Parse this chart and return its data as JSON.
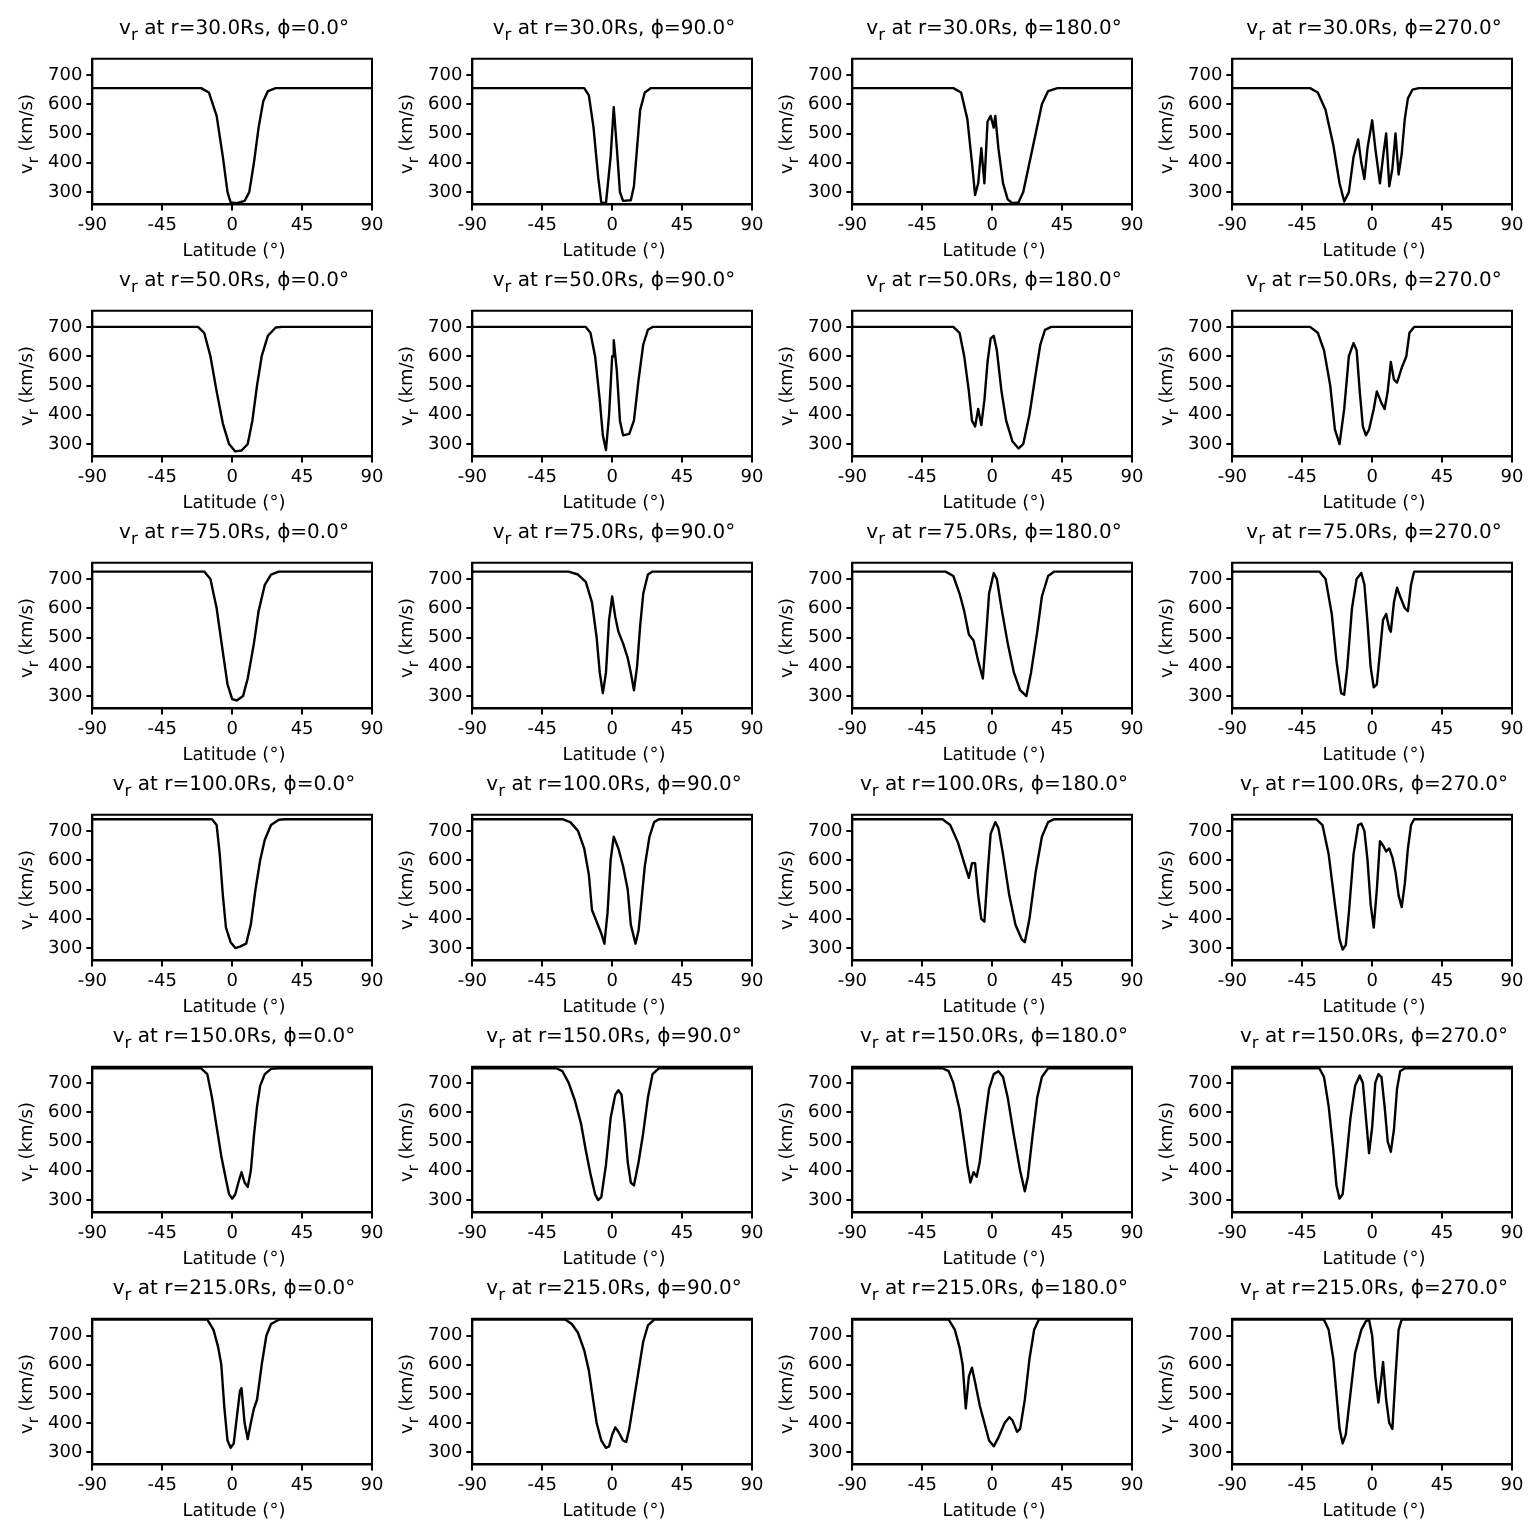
{
  "chart_data": [
    {
      "type": "line",
      "title": "v$_{r}$ at r=30.0Rs, ϕ=0.0°",
      "xlabel": "Latitude (°)",
      "ylabel": "v$_{r}$ (km/s)",
      "xlim": [
        -90,
        90
      ],
      "xticks": [
        -90,
        -45,
        0,
        45,
        90
      ],
      "ylim": [
        258,
        755
      ],
      "yticks": [
        300,
        400,
        500,
        600,
        700
      ],
      "grid": false,
      "legend": false,
      "marker": "none",
      "series": [
        {
          "color": "#000000",
          "x": [
            -90,
            -20,
            -15,
            -10,
            -6,
            -3,
            -1,
            3,
            8,
            11,
            14,
            17,
            20,
            23,
            28,
            90
          ],
          "values": [
            655,
            655,
            640,
            560,
            420,
            300,
            265,
            262,
            270,
            300,
            400,
            520,
            610,
            645,
            655,
            655
          ]
        }
      ]
    },
    {
      "type": "line",
      "title": "v$_{r}$ at r=30.0Rs, ϕ=90.0°",
      "xlabel": "Latitude (°)",
      "ylabel": "v$_{r}$ (km/s)",
      "xlim": [
        -90,
        90
      ],
      "xticks": [
        -90,
        -45,
        0,
        45,
        90
      ],
      "ylim": [
        258,
        755
      ],
      "yticks": [
        300,
        400,
        500,
        600,
        700
      ],
      "grid": false,
      "legend": false,
      "marker": "none",
      "series": [
        {
          "color": "#000000",
          "x": [
            -90,
            -18,
            -15,
            -12,
            -9,
            -7,
            -4,
            -1,
            1,
            3,
            5,
            7,
            12,
            14,
            16,
            18,
            21,
            25,
            90
          ],
          "values": [
            655,
            655,
            630,
            520,
            350,
            265,
            262,
            420,
            590,
            450,
            300,
            270,
            272,
            320,
            450,
            580,
            640,
            655,
            655
          ]
        }
      ]
    },
    {
      "type": "line",
      "title": "v$_{r}$ at r=30.0Rs, ϕ=180.0°",
      "xlabel": "Latitude (°)",
      "ylabel": "v$_{r}$ (km/s)",
      "xlim": [
        -90,
        90
      ],
      "xticks": [
        -90,
        -45,
        0,
        45,
        90
      ],
      "ylim": [
        258,
        755
      ],
      "yticks": [
        300,
        400,
        500,
        600,
        700
      ],
      "grid": false,
      "legend": false,
      "marker": "none",
      "series": [
        {
          "color": "#000000",
          "x": [
            -90,
            -25,
            -20,
            -16,
            -13,
            -11,
            -9,
            -7,
            -5,
            -3,
            -1,
            1,
            2,
            4,
            7,
            10,
            13,
            17,
            20,
            24,
            28,
            32,
            36,
            42,
            90
          ],
          "values": [
            655,
            655,
            640,
            550,
            400,
            290,
            330,
            450,
            330,
            540,
            560,
            520,
            560,
            450,
            330,
            275,
            262,
            265,
            300,
            400,
            500,
            600,
            645,
            655,
            655
          ]
        }
      ]
    },
    {
      "type": "line",
      "title": "v$_{r}$ at r=30.0Rs, ϕ=270.0°",
      "xlabel": "Latitude (°)",
      "ylabel": "v$_{r}$ (km/s)",
      "xlim": [
        -90,
        90
      ],
      "xticks": [
        -90,
        -45,
        0,
        45,
        90
      ],
      "ylim": [
        258,
        755
      ],
      "yticks": [
        300,
        400,
        500,
        600,
        700
      ],
      "grid": false,
      "legend": false,
      "marker": "none",
      "series": [
        {
          "color": "#000000",
          "x": [
            -90,
            -40,
            -35,
            -30,
            -25,
            -21,
            -18,
            -15,
            -12,
            -9,
            -7,
            -5,
            -3,
            0,
            2,
            5,
            7,
            9,
            11,
            13,
            15,
            17,
            19,
            21,
            23,
            26,
            30,
            90
          ],
          "values": [
            655,
            655,
            640,
            580,
            460,
            330,
            268,
            300,
            420,
            480,
            400,
            345,
            450,
            545,
            450,
            330,
            420,
            500,
            320,
            380,
            500,
            360,
            430,
            550,
            620,
            650,
            655,
            655
          ]
        }
      ]
    },
    {
      "type": "line",
      "title": "v$_{r}$ at r=50.0Rs, ϕ=0.0°",
      "xlabel": "Latitude (°)",
      "ylabel": "v$_{r}$ (km/s)",
      "xlim": [
        -90,
        90
      ],
      "xticks": [
        -90,
        -45,
        0,
        45,
        90
      ],
      "ylim": [
        258,
        755
      ],
      "yticks": [
        300,
        400,
        500,
        600,
        700
      ],
      "grid": false,
      "legend": false,
      "marker": "none",
      "series": [
        {
          "color": "#000000",
          "x": [
            -90,
            -22,
            -18,
            -14,
            -10,
            -6,
            -2,
            2,
            6,
            10,
            13,
            16,
            19,
            23,
            28,
            32,
            90
          ],
          "values": [
            700,
            700,
            680,
            600,
            480,
            370,
            300,
            275,
            278,
            300,
            380,
            500,
            600,
            670,
            698,
            700,
            700
          ]
        }
      ]
    },
    {
      "type": "line",
      "title": "v$_{r}$ at r=50.0Rs, ϕ=90.0°",
      "xlabel": "Latitude (°)",
      "ylabel": "v$_{r}$ (km/s)",
      "xlim": [
        -90,
        90
      ],
      "xticks": [
        -90,
        -45,
        0,
        45,
        90
      ],
      "ylim": [
        258,
        755
      ],
      "yticks": [
        300,
        400,
        500,
        600,
        700
      ],
      "grid": false,
      "legend": false,
      "marker": "none",
      "series": [
        {
          "color": "#000000",
          "x": [
            -90,
            -17,
            -14,
            -11,
            -8,
            -6,
            -4,
            -2,
            0,
            1,
            3,
            5,
            7,
            11,
            14,
            17,
            20,
            23,
            26,
            90
          ],
          "values": [
            700,
            700,
            680,
            600,
            450,
            330,
            280,
            400,
            600,
            655,
            550,
            380,
            330,
            335,
            380,
            520,
            640,
            690,
            700,
            700
          ]
        }
      ]
    },
    {
      "type": "line",
      "title": "v$_{r}$ at r=50.0Rs, ϕ=180.0°",
      "xlabel": "Latitude (°)",
      "ylabel": "v$_{r}$ (km/s)",
      "xlim": [
        -90,
        90
      ],
      "xticks": [
        -90,
        -45,
        0,
        45,
        90
      ],
      "ylim": [
        258,
        755
      ],
      "yticks": [
        300,
        400,
        500,
        600,
        700
      ],
      "grid": false,
      "legend": false,
      "marker": "none",
      "series": [
        {
          "color": "#000000",
          "x": [
            -90,
            -25,
            -21,
            -18,
            -15,
            -13,
            -11,
            -9,
            -7,
            -5,
            -3,
            -1,
            1,
            3,
            6,
            9,
            13,
            17,
            20,
            24,
            28,
            31,
            34,
            38,
            90
          ],
          "values": [
            700,
            700,
            680,
            600,
            480,
            380,
            360,
            420,
            365,
            450,
            580,
            660,
            670,
            620,
            480,
            380,
            310,
            285,
            300,
            400,
            540,
            640,
            690,
            700,
            700
          ]
        }
      ]
    },
    {
      "type": "line",
      "title": "v$_{r}$ at r=50.0Rs, ϕ=270.0°",
      "xlabel": "Latitude (°)",
      "ylabel": "v$_{r}$ (km/s)",
      "xlim": [
        -90,
        90
      ],
      "xticks": [
        -90,
        -45,
        0,
        45,
        90
      ],
      "ylim": [
        258,
        755
      ],
      "yticks": [
        300,
        400,
        500,
        600,
        700
      ],
      "grid": false,
      "legend": false,
      "marker": "none",
      "series": [
        {
          "color": "#000000",
          "x": [
            -90,
            -40,
            -35,
            -31,
            -27,
            -24,
            -21,
            -18,
            -15,
            -12,
            -10,
            -8,
            -6,
            -4,
            -2,
            1,
            3,
            6,
            8,
            10,
            12,
            14,
            16,
            19,
            22,
            24,
            27,
            90
          ],
          "values": [
            700,
            700,
            680,
            620,
            500,
            350,
            300,
            420,
            600,
            645,
            620,
            480,
            360,
            330,
            350,
            420,
            480,
            440,
            420,
            480,
            580,
            520,
            510,
            560,
            600,
            680,
            700,
            700
          ]
        }
      ]
    },
    {
      "type": "line",
      "title": "v$_{r}$ at r=75.0Rs, ϕ=0.0°",
      "xlabel": "Latitude (°)",
      "ylabel": "v$_{r}$ (km/s)",
      "xlim": [
        -90,
        90
      ],
      "xticks": [
        -90,
        -45,
        0,
        45,
        90
      ],
      "ylim": [
        258,
        755
      ],
      "yticks": [
        300,
        400,
        500,
        600,
        700
      ],
      "grid": false,
      "legend": false,
      "marker": "none",
      "series": [
        {
          "color": "#000000",
          "x": [
            -90,
            -18,
            -14,
            -10,
            -6,
            -3,
            0,
            3,
            7,
            10,
            14,
            17,
            21,
            25,
            30,
            90
          ],
          "values": [
            725,
            725,
            700,
            600,
            450,
            340,
            290,
            285,
            300,
            360,
            480,
            590,
            680,
            715,
            725,
            725
          ]
        }
      ]
    },
    {
      "type": "line",
      "title": "v$_{r}$ at r=75.0Rs, ϕ=90.0°",
      "xlabel": "Latitude (°)",
      "ylabel": "v$_{r}$ (km/s)",
      "xlim": [
        -90,
        90
      ],
      "xticks": [
        -90,
        -45,
        0,
        45,
        90
      ],
      "ylim": [
        258,
        755
      ],
      "yticks": [
        300,
        400,
        500,
        600,
        700
      ],
      "grid": false,
      "legend": false,
      "marker": "none",
      "series": [
        {
          "color": "#000000",
          "x": [
            -90,
            -28,
            -22,
            -17,
            -13,
            -10,
            -8,
            -6,
            -4,
            -2,
            0,
            2,
            4,
            7,
            10,
            12,
            14,
            16,
            18,
            20,
            23,
            26,
            90
          ],
          "values": [
            725,
            725,
            715,
            690,
            620,
            500,
            380,
            310,
            380,
            560,
            640,
            570,
            520,
            480,
            430,
            380,
            320,
            400,
            540,
            650,
            715,
            725,
            725
          ]
        }
      ]
    },
    {
      "type": "line",
      "title": "v$_{r}$ at r=75.0Rs, ϕ=180.0°",
      "xlabel": "Latitude (°)",
      "ylabel": "v$_{r}$ (km/s)",
      "xlim": [
        -90,
        90
      ],
      "xticks": [
        -90,
        -45,
        0,
        45,
        90
      ],
      "ylim": [
        258,
        755
      ],
      "yticks": [
        300,
        400,
        500,
        600,
        700
      ],
      "grid": false,
      "legend": false,
      "marker": "none",
      "series": [
        {
          "color": "#000000",
          "x": [
            -90,
            -30,
            -25,
            -21,
            -18,
            -15,
            -12,
            -9,
            -6,
            -4,
            -2,
            1,
            3,
            6,
            10,
            14,
            18,
            22,
            25,
            29,
            32,
            36,
            40,
            90
          ],
          "values": [
            725,
            725,
            710,
            650,
            590,
            510,
            490,
            420,
            360,
            500,
            650,
            720,
            700,
            600,
            480,
            380,
            320,
            300,
            380,
            520,
            640,
            710,
            725,
            725
          ]
        }
      ]
    },
    {
      "type": "line",
      "title": "v$_{r}$ at r=75.0Rs, ϕ=270.0°",
      "xlabel": "Latitude (°)",
      "ylabel": "v$_{r}$ (km/s)",
      "xlim": [
        -90,
        90
      ],
      "xticks": [
        -90,
        -45,
        0,
        45,
        90
      ],
      "ylim": [
        258,
        755
      ],
      "yticks": [
        300,
        400,
        500,
        600,
        700
      ],
      "grid": false,
      "legend": false,
      "marker": "none",
      "series": [
        {
          "color": "#000000",
          "x": [
            -90,
            -34,
            -30,
            -26,
            -23,
            -20,
            -18,
            -16,
            -13,
            -10,
            -7,
            -5,
            -3,
            -1,
            1,
            3,
            5,
            7,
            9,
            11,
            12,
            14,
            16,
            18,
            21,
            23,
            25,
            27,
            90
          ],
          "values": [
            725,
            725,
            700,
            580,
            420,
            310,
            305,
            400,
            600,
            700,
            720,
            680,
            550,
            400,
            330,
            340,
            450,
            560,
            580,
            530,
            520,
            620,
            670,
            640,
            600,
            590,
            680,
            725,
            725
          ]
        }
      ]
    },
    {
      "type": "line",
      "title": "v$_{r}$ at r=100.0Rs, ϕ=0.0°",
      "xlabel": "Latitude (°)",
      "ylabel": "v$_{r}$ (km/s)",
      "xlim": [
        -90,
        90
      ],
      "xticks": [
        -90,
        -45,
        0,
        45,
        90
      ],
      "ylim": [
        258,
        755
      ],
      "yticks": [
        300,
        400,
        500,
        600,
        700
      ],
      "grid": false,
      "legend": false,
      "marker": "none",
      "series": [
        {
          "color": "#000000",
          "x": [
            -90,
            -13,
            -10,
            -8,
            -6,
            -4,
            -1,
            2,
            5,
            9,
            12,
            15,
            18,
            21,
            25,
            30,
            34,
            90
          ],
          "values": [
            740,
            740,
            720,
            620,
            480,
            370,
            320,
            300,
            305,
            315,
            380,
            500,
            600,
            670,
            720,
            738,
            740,
            740
          ]
        }
      ]
    },
    {
      "type": "line",
      "title": "v$_{r}$ at r=100.0Rs, ϕ=90.0°",
      "xlabel": "Latitude (°)",
      "ylabel": "v$_{r}$ (km/s)",
      "xlim": [
        -90,
        90
      ],
      "xticks": [
        -90,
        -45,
        0,
        45,
        90
      ],
      "ylim": [
        258,
        755
      ],
      "yticks": [
        300,
        400,
        500,
        600,
        700
      ],
      "grid": false,
      "legend": false,
      "marker": "none",
      "series": [
        {
          "color": "#000000",
          "x": [
            -90,
            -32,
            -27,
            -22,
            -18,
            -15,
            -13,
            -10,
            -7,
            -5,
            -3,
            -1,
            1,
            4,
            7,
            10,
            12,
            15,
            17,
            19,
            21,
            24,
            27,
            30,
            90
          ],
          "values": [
            740,
            740,
            730,
            700,
            640,
            550,
            430,
            390,
            350,
            315,
            420,
            600,
            680,
            640,
            580,
            500,
            380,
            315,
            360,
            470,
            580,
            680,
            730,
            740,
            740
          ]
        }
      ]
    },
    {
      "type": "line",
      "title": "v$_{r}$ at r=100.0Rs, ϕ=180.0°",
      "xlabel": "Latitude (°)",
      "ylabel": "v$_{r}$ (km/s)",
      "xlim": [
        -90,
        90
      ],
      "xticks": [
        -90,
        -45,
        0,
        45,
        90
      ],
      "ylim": [
        258,
        755
      ],
      "yticks": [
        300,
        400,
        500,
        600,
        700
      ],
      "grid": false,
      "legend": false,
      "marker": "none",
      "series": [
        {
          "color": "#000000",
          "x": [
            -90,
            -32,
            -27,
            -22,
            -18,
            -15,
            -13,
            -11,
            -9,
            -7,
            -5,
            -3,
            -1,
            2,
            4,
            7,
            11,
            15,
            19,
            21,
            24,
            28,
            32,
            36,
            40,
            90
          ],
          "values": [
            740,
            740,
            720,
            660,
            590,
            540,
            590,
            590,
            480,
            400,
            390,
            550,
            690,
            730,
            710,
            620,
            480,
            380,
            330,
            320,
            400,
            560,
            680,
            730,
            740,
            740
          ]
        }
      ]
    },
    {
      "type": "line",
      "title": "v$_{r}$ at r=100.0Rs, ϕ=270.0°",
      "xlabel": "Latitude (°)",
      "ylabel": "v$_{r}$ (km/s)",
      "xlim": [
        -90,
        90
      ],
      "xticks": [
        -90,
        -45,
        0,
        45,
        90
      ],
      "ylim": [
        258,
        755
      ],
      "yticks": [
        300,
        400,
        500,
        600,
        700
      ],
      "grid": false,
      "legend": false,
      "marker": "none",
      "series": [
        {
          "color": "#000000",
          "x": [
            -90,
            -36,
            -32,
            -28,
            -24,
            -21,
            -19,
            -17,
            -15,
            -12,
            -9,
            -7,
            -5,
            -3,
            -1,
            1,
            3,
            5,
            7,
            9,
            11,
            13,
            15,
            17,
            19,
            21,
            23,
            25,
            27,
            90
          ],
          "values": [
            740,
            740,
            720,
            620,
            450,
            330,
            295,
            310,
            420,
            620,
            720,
            725,
            700,
            600,
            450,
            370,
            500,
            665,
            650,
            630,
            640,
            610,
            560,
            480,
            440,
            520,
            640,
            720,
            740,
            740
          ]
        }
      ]
    },
    {
      "type": "line",
      "title": "v$_{r}$ at r=150.0Rs, ϕ=0.0°",
      "xlabel": "Latitude (°)",
      "ylabel": "v$_{r}$ (km/s)",
      "xlim": [
        -90,
        90
      ],
      "xticks": [
        -90,
        -45,
        0,
        45,
        90
      ],
      "ylim": [
        258,
        755
      ],
      "yticks": [
        300,
        400,
        500,
        600,
        700
      ],
      "grid": false,
      "legend": false,
      "marker": "none",
      "series": [
        {
          "color": "#000000",
          "x": [
            -90,
            -20,
            -16,
            -13,
            -10,
            -7,
            -4,
            -2,
            0,
            2,
            4,
            6,
            8,
            10,
            12,
            14,
            16,
            18,
            21,
            25,
            30,
            90
          ],
          "values": [
            750,
            750,
            730,
            650,
            550,
            450,
            370,
            320,
            305,
            320,
            360,
            395,
            360,
            345,
            400,
            520,
            620,
            690,
            730,
            748,
            750,
            750
          ]
        }
      ]
    },
    {
      "type": "line",
      "title": "v$_{r}$ at r=150.0Rs, ϕ=90.0°",
      "xlabel": "Latitude (°)",
      "ylabel": "v$_{r}$ (km/s)",
      "xlim": [
        -90,
        90
      ],
      "xticks": [
        -90,
        -45,
        0,
        45,
        90
      ],
      "ylim": [
        258,
        755
      ],
      "yticks": [
        300,
        400,
        500,
        600,
        700
      ],
      "grid": false,
      "legend": false,
      "marker": "none",
      "series": [
        {
          "color": "#000000",
          "x": [
            -90,
            -36,
            -32,
            -28,
            -24,
            -20,
            -17,
            -14,
            -11,
            -9,
            -7,
            -4,
            -1,
            2,
            4,
            6,
            8,
            10,
            12,
            14,
            17,
            20,
            23,
            26,
            30,
            90
          ],
          "values": [
            750,
            750,
            740,
            700,
            640,
            560,
            470,
            390,
            320,
            300,
            310,
            420,
            580,
            660,
            675,
            660,
            560,
            430,
            360,
            350,
            430,
            530,
            650,
            730,
            750,
            750
          ]
        }
      ]
    },
    {
      "type": "line",
      "title": "v$_{r}$ at r=150.0Rs, ϕ=180.0°",
      "xlabel": "Latitude (°)",
      "ylabel": "v$_{r}$ (km/s)",
      "xlim": [
        -90,
        90
      ],
      "xticks": [
        -90,
        -45,
        0,
        45,
        90
      ],
      "ylim": [
        258,
        755
      ],
      "yticks": [
        300,
        400,
        500,
        600,
        700
      ],
      "grid": false,
      "legend": false,
      "marker": "none",
      "series": [
        {
          "color": "#000000",
          "x": [
            -90,
            -32,
            -28,
            -25,
            -21,
            -18,
            -16,
            -14,
            -12,
            -10,
            -8,
            -5,
            -2,
            1,
            4,
            7,
            10,
            14,
            18,
            21,
            23,
            26,
            29,
            32,
            36,
            90
          ],
          "values": [
            750,
            750,
            740,
            700,
            610,
            500,
            420,
            360,
            395,
            380,
            430,
            560,
            680,
            730,
            740,
            720,
            650,
            520,
            400,
            330,
            380,
            520,
            650,
            720,
            750,
            750
          ]
        }
      ]
    },
    {
      "type": "line",
      "title": "v$_{r}$ at r=150.0Rs, ϕ=270.0°",
      "xlabel": "Latitude (°)",
      "ylabel": "v$_{r}$ (km/s)",
      "xlim": [
        -90,
        90
      ],
      "xticks": [
        -90,
        -45,
        0,
        45,
        90
      ],
      "ylim": [
        258,
        755
      ],
      "yticks": [
        300,
        400,
        500,
        600,
        700
      ],
      "grid": false,
      "legend": false,
      "marker": "none",
      "series": [
        {
          "color": "#000000",
          "x": [
            -90,
            -34,
            -31,
            -28,
            -25,
            -23,
            -21,
            -19,
            -17,
            -14,
            -11,
            -8,
            -6,
            -4,
            -2,
            0,
            2,
            4,
            6,
            8,
            10,
            12,
            14,
            16,
            18,
            21,
            90
          ],
          "values": [
            750,
            750,
            720,
            620,
            470,
            350,
            305,
            320,
            420,
            580,
            690,
            725,
            700,
            580,
            460,
            550,
            700,
            730,
            720,
            620,
            500,
            465,
            540,
            680,
            740,
            750,
            750
          ]
        }
      ]
    },
    {
      "type": "line",
      "title": "v$_{r}$ at r=215.0Rs, ϕ=0.0°",
      "xlabel": "Latitude (°)",
      "ylabel": "v$_{r}$ (km/s)",
      "xlim": [
        -90,
        90
      ],
      "xticks": [
        -90,
        -45,
        0,
        45,
        90
      ],
      "ylim": [
        258,
        758
      ],
      "yticks": [
        300,
        400,
        500,
        600,
        700
      ],
      "grid": false,
      "legend": false,
      "marker": "none",
      "series": [
        {
          "color": "#000000",
          "x": [
            -90,
            -16,
            -12,
            -9,
            -7,
            -5,
            -3,
            -1,
            1,
            3,
            5,
            6,
            8,
            10,
            12,
            14,
            16,
            19,
            22,
            25,
            30,
            90
          ],
          "values": [
            755,
            755,
            720,
            660,
            600,
            450,
            340,
            315,
            330,
            420,
            510,
            520,
            400,
            345,
            400,
            450,
            480,
            600,
            700,
            740,
            755,
            755
          ]
        }
      ]
    },
    {
      "type": "line",
      "title": "v$_{r}$ at r=215.0Rs, ϕ=90.0°",
      "xlabel": "Latitude (°)",
      "ylabel": "v$_{r}$ (km/s)",
      "xlim": [
        -90,
        90
      ],
      "xticks": [
        -90,
        -45,
        0,
        45,
        90
      ],
      "ylim": [
        258,
        758
      ],
      "yticks": [
        300,
        400,
        500,
        600,
        700
      ],
      "grid": false,
      "legend": false,
      "marker": "none",
      "series": [
        {
          "color": "#000000",
          "x": [
            -90,
            -30,
            -26,
            -22,
            -18,
            -15,
            -12,
            -10,
            -7,
            -4,
            -2,
            0,
            2,
            4,
            7,
            9,
            11,
            14,
            17,
            20,
            23,
            27,
            90
          ],
          "values": [
            755,
            755,
            740,
            710,
            650,
            580,
            470,
            400,
            340,
            315,
            320,
            360,
            385,
            370,
            340,
            335,
            380,
            480,
            580,
            680,
            735,
            755,
            755
          ]
        }
      ]
    },
    {
      "type": "line",
      "title": "v$_{r}$ at r=215.0Rs, ϕ=180.0°",
      "xlabel": "Latitude (°)",
      "ylabel": "v$_{r}$ (km/s)",
      "xlim": [
        -90,
        90
      ],
      "xticks": [
        -90,
        -45,
        0,
        45,
        90
      ],
      "ylim": [
        258,
        758
      ],
      "yticks": [
        300,
        400,
        500,
        600,
        700
      ],
      "grid": false,
      "legend": false,
      "marker": "none",
      "series": [
        {
          "color": "#000000",
          "x": [
            -90,
            -28,
            -24,
            -21,
            -19,
            -17,
            -15,
            -13,
            -11,
            -8,
            -5,
            -2,
            1,
            4,
            8,
            11,
            13,
            16,
            18,
            21,
            24,
            27,
            30,
            90
          ],
          "values": [
            755,
            755,
            720,
            660,
            600,
            450,
            560,
            590,
            540,
            460,
            400,
            340,
            320,
            350,
            400,
            420,
            410,
            370,
            380,
            480,
            620,
            720,
            755,
            755
          ]
        }
      ]
    },
    {
      "type": "line",
      "title": "v$_{r}$ at r=215.0Rs, ϕ=270.0°",
      "xlabel": "Latitude (°)",
      "ylabel": "v$_{r}$ (km/s)",
      "xlim": [
        -90,
        90
      ],
      "xticks": [
        -90,
        -45,
        0,
        45,
        90
      ],
      "ylim": [
        258,
        758
      ],
      "yticks": [
        300,
        400,
        500,
        600,
        700
      ],
      "grid": false,
      "legend": false,
      "marker": "none",
      "series": [
        {
          "color": "#000000",
          "x": [
            -90,
            -31,
            -28,
            -25,
            -23,
            -21,
            -19,
            -17,
            -14,
            -11,
            -7,
            -4,
            -2,
            0,
            2,
            4,
            6,
            7,
            9,
            11,
            13,
            15,
            17,
            19,
            90
          ],
          "values": [
            755,
            755,
            720,
            620,
            500,
            380,
            330,
            360,
            500,
            640,
            720,
            750,
            755,
            700,
            560,
            470,
            560,
            610,
            480,
            400,
            380,
            560,
            720,
            755,
            755
          ]
        }
      ]
    }
  ]
}
